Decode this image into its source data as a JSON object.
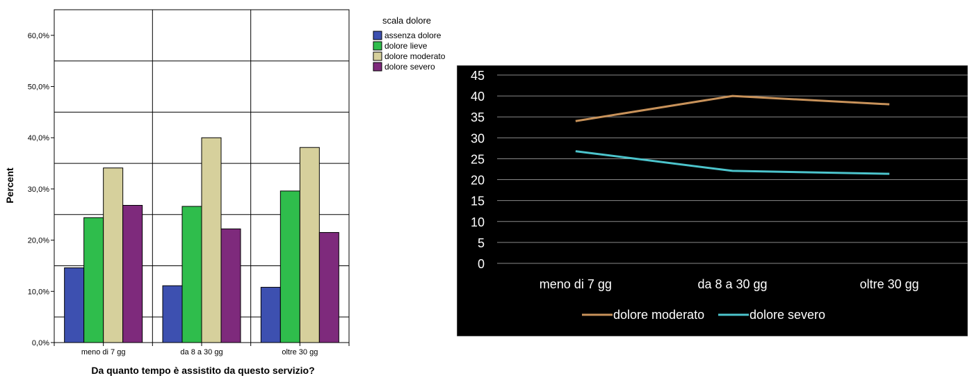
{
  "chart_data": [
    {
      "type": "bar",
      "title": "",
      "xlabel": "Da quanto tempo è assistito da questo servizio?",
      "ylabel": "Percent",
      "categories": [
        "meno di 7 gg",
        "da 8 a 30 gg",
        "oltre 30 gg"
      ],
      "y_ticks": [
        "0,0%",
        "10,0%",
        "20,0%",
        "30,0%",
        "40,0%",
        "50,0%",
        "60,0%"
      ],
      "ylim": [
        0,
        65
      ],
      "legend_title": "scala dolore",
      "legend_position": "top-right",
      "grid": true,
      "series": [
        {
          "name": "assenza dolore",
          "color": "#3d50b0",
          "values": [
            14.6,
            11.1,
            10.8
          ]
        },
        {
          "name": "dolore lieve",
          "color": "#2fbd4c",
          "values": [
            24.4,
            26.6,
            29.6
          ]
        },
        {
          "name": "dolore moderato",
          "color": "#d6d09c",
          "values": [
            34.1,
            40.0,
            38.1
          ]
        },
        {
          "name": "dolore severo",
          "color": "#7e2a7c",
          "values": [
            26.8,
            22.2,
            21.5
          ]
        }
      ]
    },
    {
      "type": "line",
      "title": "",
      "categories": [
        "meno di 7 gg",
        "da 8 a 30 gg",
        "oltre 30 gg"
      ],
      "y_ticks": [
        "0",
        "5",
        "10",
        "15",
        "20",
        "25",
        "30",
        "35",
        "40",
        "45"
      ],
      "ylim": [
        0,
        45
      ],
      "legend_position": "bottom",
      "grid": true,
      "background": "#000000",
      "series": [
        {
          "name": "dolore moderato",
          "color": "#c8925a",
          "values": [
            34,
            40,
            38
          ]
        },
        {
          "name": "dolore severo",
          "color": "#4cc4cc",
          "values": [
            26.8,
            22.1,
            21.4
          ]
        }
      ]
    }
  ]
}
